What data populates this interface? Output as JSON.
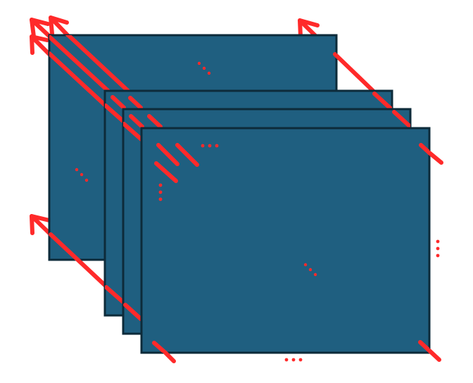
{
  "diagram": {
    "colors": {
      "panel_fill": "#1f5f80",
      "panel_border": "#0d2b3a",
      "arrow": "#ff2a2a",
      "dots": "#ff2a2a",
      "background": "#ffffff"
    },
    "panels": [
      {
        "name": "back-panel"
      },
      {
        "name": "middle-panel-1"
      },
      {
        "name": "middle-panel-2"
      },
      {
        "name": "front-panel"
      }
    ],
    "arrows": [
      {
        "name": "arrow-1"
      },
      {
        "name": "arrow-2"
      },
      {
        "name": "arrow-3"
      },
      {
        "name": "arrow-4"
      },
      {
        "name": "arrow-5"
      }
    ],
    "ellipses": [
      {
        "name": "ellipsis-top-diagonal",
        "glyph": "⋱"
      },
      {
        "name": "ellipsis-left-diagonal",
        "glyph": "⋱"
      },
      {
        "name": "ellipsis-horizontal-mid",
        "glyph": "⋯"
      },
      {
        "name": "ellipsis-vertical-mid",
        "glyph": "⋮"
      },
      {
        "name": "ellipsis-center-diagonal",
        "glyph": "⋱"
      },
      {
        "name": "ellipsis-right-vertical",
        "glyph": "⋮"
      },
      {
        "name": "ellipsis-bottom-horizontal",
        "glyph": "⋯"
      }
    ]
  }
}
